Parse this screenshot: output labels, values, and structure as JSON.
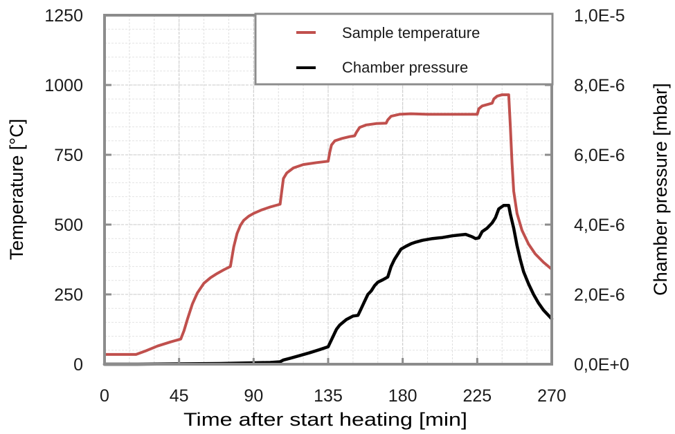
{
  "chart_data": {
    "type": "line",
    "title": "",
    "xlabel": "Time after start heating [min]",
    "ylabel": "Temperature [°C]",
    "y2label": "Chamber pressure [mbar]",
    "xlim": [
      0,
      270
    ],
    "ylim": [
      0,
      1250
    ],
    "y2lim": [
      0,
      1e-05
    ],
    "x_ticks": [
      "0",
      "45",
      "90",
      "135",
      "180",
      "225",
      "270"
    ],
    "x_tick_values": [
      0,
      45,
      90,
      135,
      180,
      225,
      270
    ],
    "y_ticks": [
      "0",
      "250",
      "500",
      "750",
      "1000",
      "1250"
    ],
    "y_tick_values": [
      0,
      250,
      500,
      750,
      1000,
      1250
    ],
    "y2_ticks": [
      "0,0E+0",
      "2,0E-6",
      "4,0E-6",
      "6,0E-6",
      "8,0E-6",
      "1,0E-5"
    ],
    "y2_tick_values": [
      0,
      2e-06,
      4e-06,
      6e-06,
      8e-06,
      1e-05
    ],
    "grid": true,
    "legend_position": "top-right",
    "series": [
      {
        "name": "Sample temperature",
        "axis": "left",
        "color": "#c0504d",
        "x": [
          0,
          10,
          19,
          25,
          32,
          40,
          46,
          48,
          50,
          53,
          56,
          60,
          64,
          68,
          72,
          76,
          78,
          80,
          82,
          84,
          87,
          90,
          95,
          100,
          106,
          107,
          108,
          110,
          114,
          120,
          128,
          135,
          136,
          137,
          139,
          143,
          148,
          151,
          152,
          154,
          158,
          164,
          170,
          171,
          173,
          178,
          185,
          195,
          210,
          225,
          226,
          228,
          231,
          234,
          235,
          237,
          240,
          243,
          244,
          245,
          246,
          247,
          249,
          252,
          256,
          260,
          265,
          270
        ],
        "y": [
          35,
          35,
          35,
          48,
          65,
          80,
          90,
          120,
          160,
          215,
          255,
          290,
          310,
          325,
          338,
          350,
          420,
          468,
          497,
          515,
          530,
          540,
          553,
          563,
          573,
          620,
          665,
          685,
          703,
          715,
          722,
          727,
          760,
          785,
          800,
          808,
          815,
          818,
          830,
          848,
          857,
          862,
          863,
          875,
          888,
          895,
          897,
          895,
          895,
          895,
          915,
          925,
          930,
          935,
          950,
          960,
          965,
          965,
          965,
          850,
          720,
          620,
          540,
          480,
          430,
          395,
          365,
          340
        ]
      },
      {
        "name": "Chamber pressure",
        "axis": "right",
        "color": "#000000",
        "x": [
          0,
          20,
          45,
          70,
          90,
          100,
          106,
          108,
          112,
          118,
          124,
          130,
          135,
          136,
          138,
          140,
          142,
          144,
          146,
          150,
          153,
          155,
          157,
          159,
          161,
          163,
          165,
          168,
          171,
          173,
          175,
          177,
          179,
          182,
          185,
          188,
          192,
          198,
          204,
          210,
          214,
          218,
          222,
          224,
          226,
          228,
          231,
          234,
          236,
          238,
          241,
          243,
          244,
          245,
          247,
          249,
          251,
          253,
          256,
          259,
          262,
          265,
          268,
          270
        ],
        "y": [
          0,
          0,
          1e-08,
          2e-08,
          4e-08,
          5e-08,
          7e-08,
          1.2e-07,
          1.7e-07,
          2.5e-07,
          3.3e-07,
          4.2e-07,
          5e-07,
          6e-07,
          8e-07,
          1e-06,
          1.12e-06,
          1.2e-06,
          1.28e-06,
          1.38e-06,
          1.4e-06,
          1.6e-06,
          1.8e-06,
          2e-06,
          2.1e-06,
          2.25e-06,
          2.35e-06,
          2.42e-06,
          2.5e-06,
          2.8e-06,
          3e-06,
          3.15e-06,
          3.3e-06,
          3.38e-06,
          3.45e-06,
          3.5e-06,
          3.55e-06,
          3.6e-06,
          3.63e-06,
          3.68e-06,
          3.7e-06,
          3.72e-06,
          3.65e-06,
          3.6e-06,
          3.62e-06,
          3.8e-06,
          3.9e-06,
          4.05e-06,
          4.2e-06,
          4.45e-06,
          4.55e-06,
          4.55e-06,
          4.55e-06,
          4.3e-06,
          3.9e-06,
          3.4e-06,
          3e-06,
          2.65e-06,
          2.3e-06,
          2e-06,
          1.75e-06,
          1.55e-06,
          1.4e-06,
          1.3e-06
        ]
      }
    ]
  }
}
